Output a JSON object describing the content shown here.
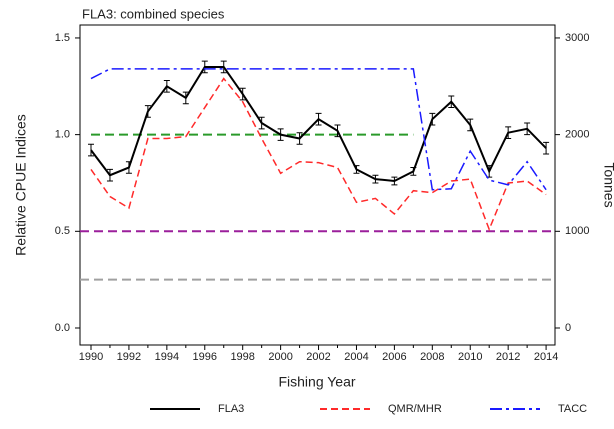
{
  "chart_data": {
    "type": "line",
    "title": "FLA3: combined species",
    "x_label": "Fishing Year",
    "y_label": "Relative CPUE Indices",
    "y2_label": "Tonnes",
    "x": [
      1990,
      1991,
      1992,
      1993,
      1994,
      1995,
      1996,
      1997,
      1998,
      1999,
      2000,
      2001,
      2002,
      2003,
      2004,
      2005,
      2006,
      2007,
      2008,
      2009,
      2010,
      2011,
      2012,
      2013,
      2014
    ],
    "xlim": [
      1989.42,
      2014.47
    ],
    "xticks": [
      1990,
      1992,
      1994,
      1996,
      1998,
      2000,
      2002,
      2004,
      2006,
      2008,
      2010,
      2012,
      2014
    ],
    "ylim": [
      -0.088,
      1.567
    ],
    "yticks": [
      {
        "value": 0,
        "label": "0.0"
      },
      {
        "value": 0.5,
        "label": "0.5"
      },
      {
        "value": 1,
        "label": "1.0"
      },
      {
        "value": 1.5,
        "label": "1.5"
      }
    ],
    "y2lim": [
      -176,
      3134
    ],
    "y2ticks": [
      0,
      1000,
      2000,
      3000
    ],
    "series": [
      {
        "name": "FLA3",
        "color": "#000000",
        "dash": "",
        "values": [
          0.92,
          0.79,
          0.83,
          1.12,
          1.25,
          1.19,
          1.35,
          1.35,
          1.21,
          1.06,
          1.0,
          0.98,
          1.08,
          1.02,
          0.82,
          0.77,
          0.76,
          0.81,
          1.08,
          1.17,
          1.05,
          0.81,
          1.01,
          1.03,
          0.93
        ],
        "errors": [
          0.03,
          0.03,
          0.03,
          0.03,
          0.03,
          0.03,
          0.03,
          0.03,
          0.03,
          0.03,
          0.03,
          0.03,
          0.03,
          0.03,
          0.02,
          0.02,
          0.02,
          0.02,
          0.03,
          0.03,
          0.03,
          0.03,
          0.03,
          0.03,
          0.03
        ]
      },
      {
        "name": "QMR/MHR",
        "color": "#ff2a2a",
        "dash": "7 4",
        "axis": "y2",
        "values": [
          1640,
          1360,
          1240,
          1960,
          1960,
          1980,
          2280,
          2580,
          2340,
          1960,
          1600,
          1720,
          1710,
          1660,
          1300,
          1340,
          1180,
          1420,
          1400,
          1520,
          1540,
          1020,
          1500,
          1520,
          1380
        ]
      },
      {
        "name": "TACC",
        "color": "#1a1aff",
        "dash": "12 4 3 4",
        "axis": "y2",
        "values": [
          2580,
          2680,
          2680,
          2680,
          2680,
          2680,
          2680,
          2680,
          2680,
          2680,
          2680,
          2680,
          2680,
          2680,
          2680,
          2680,
          2680,
          2680,
          1430,
          1440,
          1830,
          1530,
          1480,
          1720,
          1430
        ]
      }
    ],
    "reference_lines": [
      {
        "value": 1,
        "color": "#2a9a2a",
        "from": 1990,
        "to": 2007
      },
      {
        "value": 0.5,
        "color": "#9b1f9b"
      },
      {
        "value": 0.25,
        "color": "#a0a0a0"
      }
    ]
  }
}
